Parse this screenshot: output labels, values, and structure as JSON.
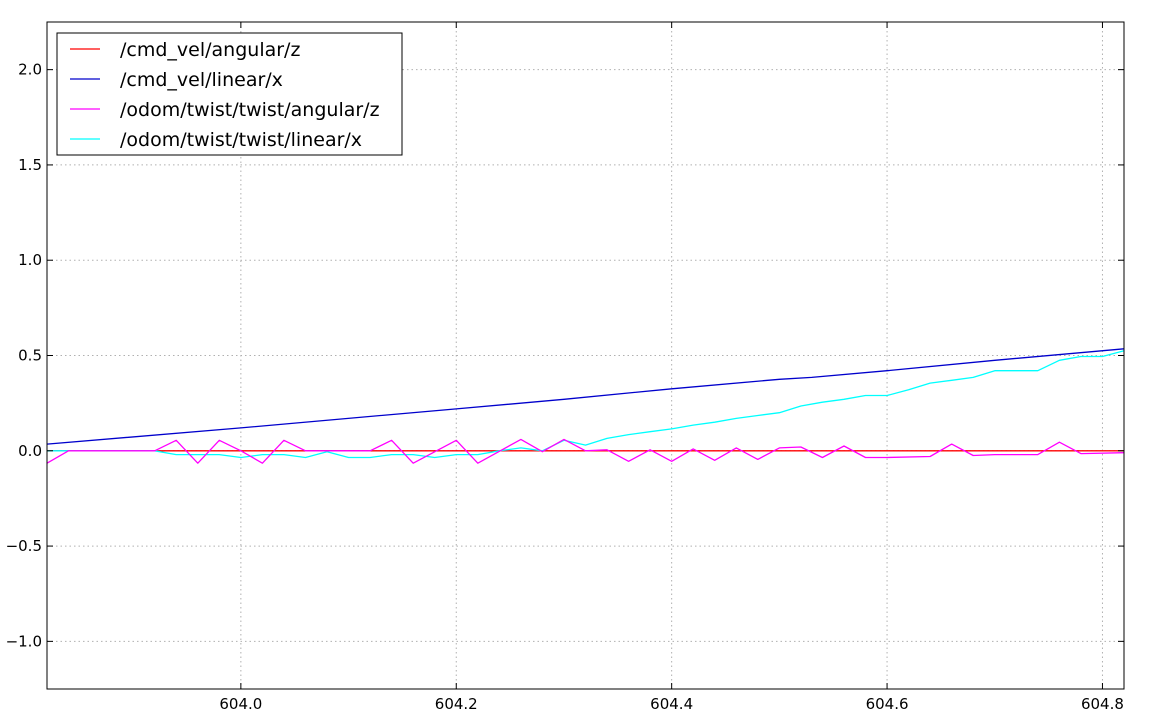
{
  "chart_data": {
    "type": "line",
    "title": "",
    "xlabel": "",
    "ylabel": "",
    "xlim": [
      603.82,
      604.82
    ],
    "ylim": [
      -1.25,
      2.25
    ],
    "x_ticks": [
      604.0,
      604.2,
      604.4,
      604.6,
      604.8
    ],
    "x_tick_labels": [
      "604.0",
      "604.2",
      "604.4",
      "604.6",
      "604.8"
    ],
    "y_ticks": [
      2.0,
      1.5,
      1.0,
      0.5,
      0.0,
      -0.5,
      -1.0
    ],
    "y_tick_labels": [
      "2.0",
      "1.5",
      "1.0",
      "0.5",
      "0.0",
      "−0.5",
      "−1.0"
    ],
    "grid": true,
    "legend_position": "top-left",
    "series": [
      {
        "name": "/cmd_vel/angular/z",
        "color": "#ff0000",
        "points": [
          [
            603.82,
            0.0
          ],
          [
            604.82,
            0.0
          ]
        ]
      },
      {
        "name": "/cmd_vel/linear/x",
        "color": "#0000cc",
        "points": [
          [
            603.82,
            0.035
          ],
          [
            604.0,
            0.12
          ],
          [
            604.15,
            0.195
          ],
          [
            604.2,
            0.22
          ],
          [
            604.3,
            0.27
          ],
          [
            604.4,
            0.325
          ],
          [
            604.5,
            0.375
          ],
          [
            604.53,
            0.385
          ],
          [
            604.6,
            0.42
          ],
          [
            604.7,
            0.475
          ],
          [
            604.82,
            0.535
          ]
        ]
      },
      {
        "name": "/odom/twist/twist/angular/z",
        "color": "#ff00ff",
        "points": [
          [
            603.82,
            -0.065
          ],
          [
            603.84,
            0.0
          ],
          [
            603.92,
            0.0
          ],
          [
            603.94,
            0.055
          ],
          [
            603.96,
            -0.065
          ],
          [
            603.98,
            0.055
          ],
          [
            604.0,
            0.0
          ],
          [
            604.02,
            -0.065
          ],
          [
            604.04,
            0.055
          ],
          [
            604.06,
            0.0
          ],
          [
            604.12,
            0.0
          ],
          [
            604.14,
            0.055
          ],
          [
            604.16,
            -0.065
          ],
          [
            604.2,
            0.055
          ],
          [
            604.22,
            -0.065
          ],
          [
            604.26,
            0.06
          ],
          [
            604.28,
            -0.005
          ],
          [
            604.3,
            0.06
          ],
          [
            604.32,
            0.0
          ],
          [
            604.34,
            0.005
          ],
          [
            604.36,
            -0.055
          ],
          [
            604.38,
            0.005
          ],
          [
            604.4,
            -0.055
          ],
          [
            604.42,
            0.01
          ],
          [
            604.44,
            -0.05
          ],
          [
            604.46,
            0.015
          ],
          [
            604.48,
            -0.045
          ],
          [
            604.5,
            0.015
          ],
          [
            604.52,
            0.02
          ],
          [
            604.54,
            -0.035
          ],
          [
            604.56,
            0.025
          ],
          [
            604.58,
            -0.035
          ],
          [
            604.6,
            -0.035
          ],
          [
            604.64,
            -0.03
          ],
          [
            604.66,
            0.035
          ],
          [
            604.68,
            -0.025
          ],
          [
            604.7,
            -0.02
          ],
          [
            604.74,
            -0.02
          ],
          [
            604.76,
            0.045
          ],
          [
            604.78,
            -0.015
          ],
          [
            604.82,
            -0.01
          ]
        ]
      },
      {
        "name": "/odom/twist/twist/linear/x",
        "color": "#00ffff",
        "points": [
          [
            603.82,
            0.0
          ],
          [
            603.92,
            0.0
          ],
          [
            603.94,
            -0.02
          ],
          [
            603.98,
            -0.02
          ],
          [
            604.0,
            -0.035
          ],
          [
            604.02,
            -0.02
          ],
          [
            604.04,
            -0.02
          ],
          [
            604.06,
            -0.035
          ],
          [
            604.08,
            -0.005
          ],
          [
            604.1,
            -0.035
          ],
          [
            604.12,
            -0.035
          ],
          [
            604.14,
            -0.02
          ],
          [
            604.16,
            -0.02
          ],
          [
            604.18,
            -0.035
          ],
          [
            604.2,
            -0.02
          ],
          [
            604.22,
            -0.02
          ],
          [
            604.24,
            0.0
          ],
          [
            604.26,
            0.015
          ],
          [
            604.28,
            0.0
          ],
          [
            604.3,
            0.055
          ],
          [
            604.32,
            0.03
          ],
          [
            604.34,
            0.065
          ],
          [
            604.36,
            0.085
          ],
          [
            604.38,
            0.1
          ],
          [
            604.4,
            0.115
          ],
          [
            604.42,
            0.135
          ],
          [
            604.44,
            0.15
          ],
          [
            604.46,
            0.17
          ],
          [
            604.48,
            0.185
          ],
          [
            604.5,
            0.2
          ],
          [
            604.52,
            0.235
          ],
          [
            604.54,
            0.255
          ],
          [
            604.56,
            0.27
          ],
          [
            604.58,
            0.29
          ],
          [
            604.6,
            0.29
          ],
          [
            604.62,
            0.32
          ],
          [
            604.64,
            0.355
          ],
          [
            604.66,
            0.37
          ],
          [
            604.68,
            0.385
          ],
          [
            604.7,
            0.42
          ],
          [
            604.74,
            0.42
          ],
          [
            604.76,
            0.475
          ],
          [
            604.78,
            0.495
          ],
          [
            604.8,
            0.495
          ],
          [
            604.82,
            0.525
          ]
        ]
      }
    ]
  }
}
